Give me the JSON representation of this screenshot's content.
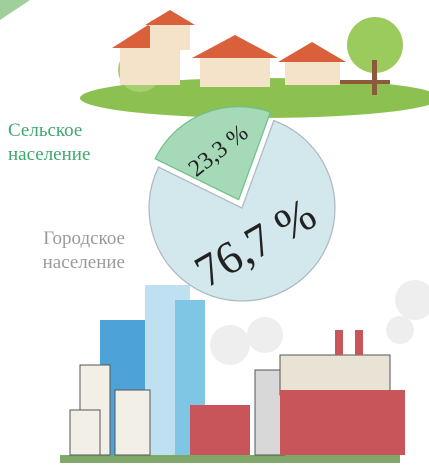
{
  "chart_data": {
    "type": "pie",
    "categories": [
      "Сельское население",
      "Городское население"
    ],
    "values": [
      23.3,
      76.7
    ],
    "value_labels": [
      "23,3 %",
      "76,7 %"
    ],
    "colors": [
      "#a6d9b7",
      "#d3e8ec"
    ],
    "label_colors": [
      "#3fa86e",
      "#9a9a9a"
    ]
  }
}
